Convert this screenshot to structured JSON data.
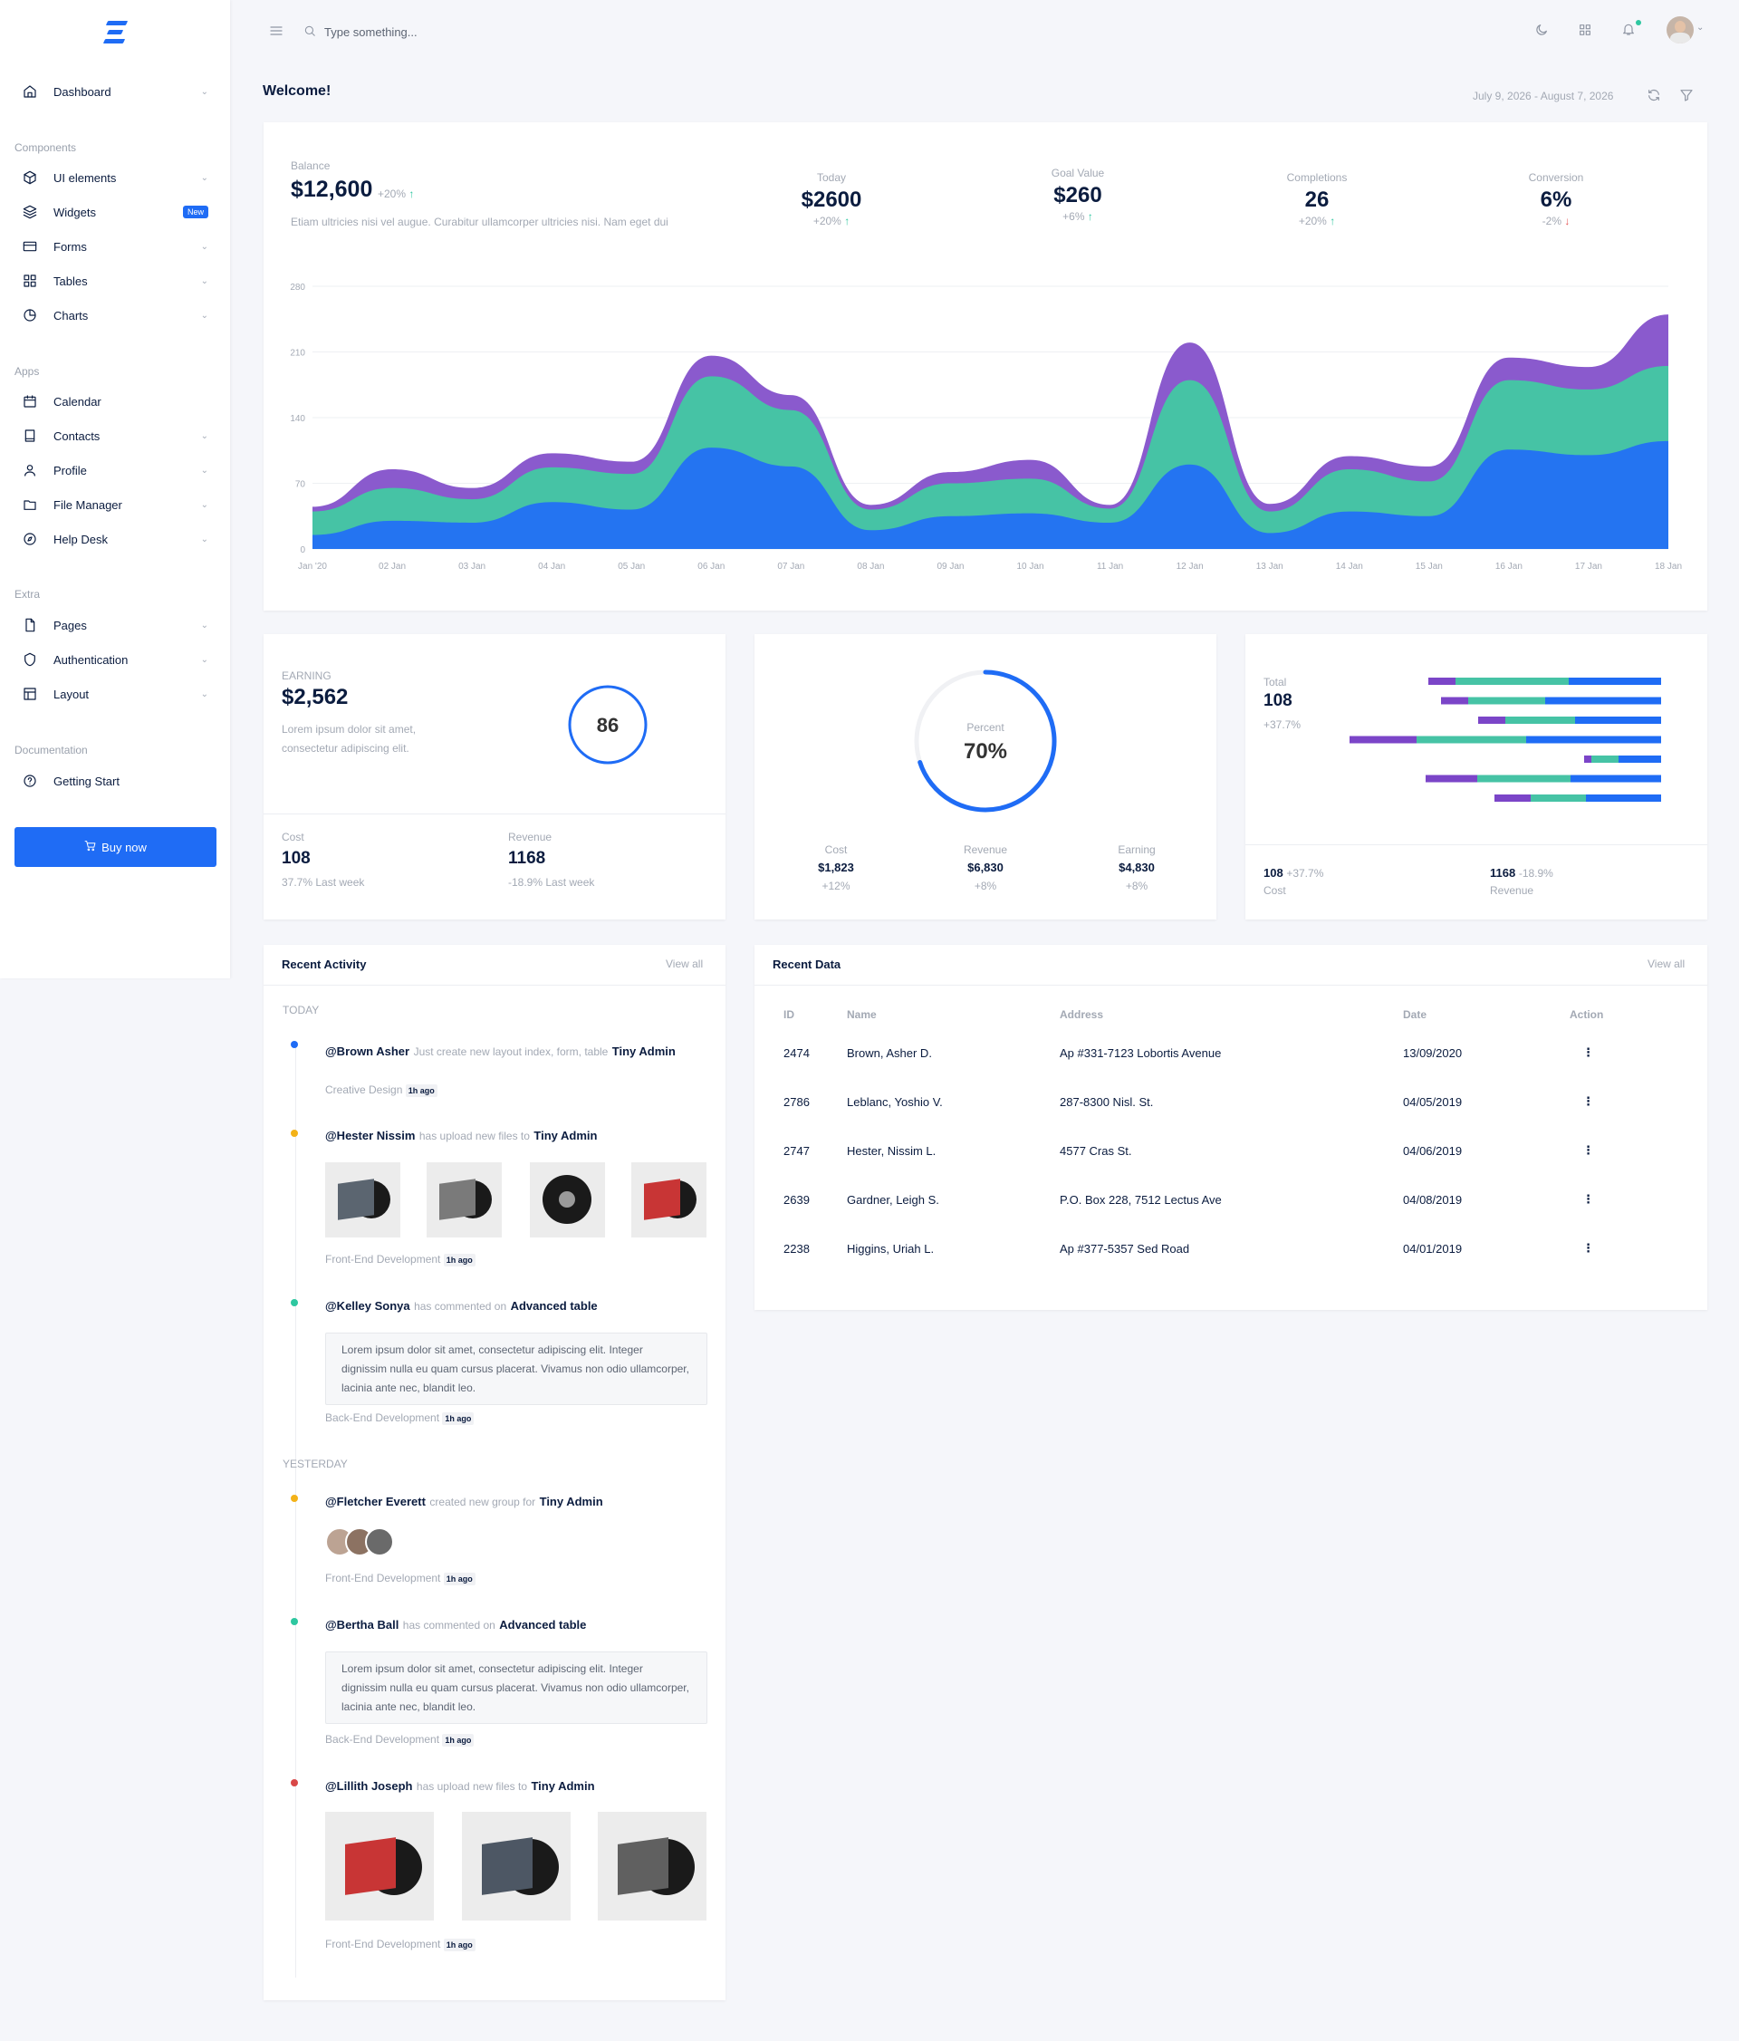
{
  "sidebar": {
    "dashboard": "Dashboard",
    "section_components": "Components",
    "ui_elements": "UI elements",
    "widgets": "Widgets",
    "widgets_badge": "New",
    "forms": "Forms",
    "tables": "Tables",
    "charts": "Charts",
    "section_apps": "Apps",
    "calendar": "Calendar",
    "contacts": "Contacts",
    "profile": "Profile",
    "file_manager": "File Manager",
    "help_desk": "Help Desk",
    "section_extra": "Extra",
    "pages": "Pages",
    "authentication": "Authentication",
    "layout": "Layout",
    "section_documentation": "Documentation",
    "getting_start": "Getting Start",
    "buy_now": "Buy now"
  },
  "topbar": {
    "search_placeholder": "Type something...",
    "accent": "#1f6cf5",
    "notification_dot": "#2ec7a0"
  },
  "header": {
    "welcome": "Welcome!",
    "date_range": "July 9, 2026 - August 7, 2026"
  },
  "overview": {
    "balance_label": "Balance",
    "balance_value": "$12,600",
    "balance_change": "+20%",
    "balance_desc": "Etiam ultricies nisi vel augue. Curabitur ullamcorper ultricies nisi. Nam eget dui",
    "stats": [
      {
        "label": "Today",
        "value": "$2600",
        "change": "+20%",
        "dir": "up"
      },
      {
        "label": "Goal Value",
        "value": "$260",
        "change": "+6%",
        "dir": "up"
      },
      {
        "label": "Completions",
        "value": "26",
        "change": "+20%",
        "dir": "up"
      },
      {
        "label": "Conversion",
        "value": "6%",
        "change": "-2%",
        "dir": "down"
      }
    ]
  },
  "chart_data": {
    "type": "area",
    "stacked": true,
    "x": [
      "Jan '20",
      "02 Jan",
      "03 Jan",
      "04 Jan",
      "05 Jan",
      "06 Jan",
      "07 Jan",
      "08 Jan",
      "09 Jan",
      "10 Jan",
      "11 Jan",
      "12 Jan",
      "13 Jan",
      "14 Jan",
      "15 Jan",
      "16 Jan",
      "17 Jan",
      "18 Jan"
    ],
    "ylim": [
      0,
      280
    ],
    "yticks": [
      "0",
      "70",
      "140",
      "210",
      "280"
    ],
    "grid": true,
    "colors": [
      "#2474f1",
      "#46c3a5",
      "#8a5acd"
    ],
    "series": [
      {
        "values": [
          15,
          30,
          28,
          50,
          42,
          108,
          88,
          20,
          35,
          38,
          28,
          90,
          17,
          40,
          35,
          106,
          100,
          115
        ]
      },
      {
        "values": [
          25,
          35,
          25,
          37,
          38,
          76,
          60,
          22,
          35,
          37,
          15,
          90,
          23,
          45,
          37,
          74,
          70,
          80
        ]
      },
      {
        "values": [
          5,
          20,
          12,
          15,
          13,
          22,
          16,
          5,
          12,
          20,
          4,
          40,
          8,
          14,
          16,
          24,
          24,
          55
        ]
      }
    ]
  },
  "earning_card": {
    "label": "EARNING",
    "value": "$2,562",
    "desc": "Lorem ipsum dolor sit amet, consectetur adipiscing elit.",
    "gauge": "86",
    "cost_label": "Cost",
    "cost_value": "108",
    "cost_sub": "37.7% Last week",
    "revenue_label": "Revenue",
    "revenue_value": "1168",
    "revenue_sub": "-18.9% Last week"
  },
  "percent_card": {
    "label": "Percent",
    "value": "70%",
    "progress": 0.7,
    "items": [
      {
        "label": "Cost",
        "value": "$1,823",
        "change": "+12%"
      },
      {
        "label": "Revenue",
        "value": "$6,830",
        "change": "+8%"
      },
      {
        "label": "Earning",
        "value": "$4,830",
        "change": "+8%"
      }
    ]
  },
  "total_card": {
    "label": "Total",
    "value": "108",
    "change": "+37.7%",
    "bars": [
      {
        "purple": 30,
        "green": 125,
        "blue": 102
      },
      {
        "purple": 30,
        "green": 85,
        "blue": 128
      },
      {
        "purple": 30,
        "green": 77,
        "blue": 95
      },
      {
        "purple": 74,
        "green": 121,
        "blue": 149
      },
      {
        "purple": 8,
        "green": 30,
        "blue": 47
      },
      {
        "purple": 57,
        "green": 103,
        "blue": 100
      },
      {
        "purple": 40,
        "green": 61,
        "blue": 83
      }
    ],
    "cost_value": "108",
    "cost_change": "+37.7%",
    "cost_label": "Cost",
    "revenue_value": "1168",
    "revenue_change": "-18.9%",
    "revenue_label": "Revenue"
  },
  "activity": {
    "title": "Recent Activity",
    "view_all": "View all",
    "today": "TODAY",
    "yesterday": "YESTERDAY",
    "a1": {
      "name": "@Brown Asher",
      "verb": "Just create new layout index, form, table",
      "target": "Tiny Admin",
      "tag": "Creative Design",
      "ago": "1h ago"
    },
    "a2": {
      "name": "@Hester Nissim",
      "verb": "has upload new files to",
      "target": "Tiny Admin",
      "tag": "Front-End Development",
      "ago": "1h ago"
    },
    "a3": {
      "name": "@Kelley Sonya",
      "verb": "has commented on",
      "target": "Advanced table",
      "comment": "Lorem ipsum dolor sit amet, consectetur adipiscing elit. Integer dignissim nulla eu quam cursus placerat. Vivamus non odio ullamcorper, lacinia ante nec, blandit leo.",
      "tag": "Back-End Development",
      "ago": "1h ago"
    },
    "a4": {
      "name": "@Fletcher Everett",
      "verb": "created new group for",
      "target": "Tiny Admin",
      "tag": "Front-End Development",
      "ago": "1h ago"
    },
    "a5": {
      "name": "@Bertha Ball",
      "verb": "has commented on",
      "target": "Advanced table",
      "comment": "Lorem ipsum dolor sit amet, consectetur adipiscing elit. Integer dignissim nulla eu quam cursus placerat. Vivamus non odio ullamcorper, lacinia ante nec, blandit leo.",
      "tag": "Back-End Development",
      "ago": "1h ago"
    },
    "a6": {
      "name": "@Lillith Joseph",
      "verb": "has upload new files to",
      "target": "Tiny Admin",
      "tag": "Front-End Development",
      "ago": "1h ago"
    }
  },
  "recent_data": {
    "title": "Recent Data",
    "view_all": "View all",
    "columns": [
      "ID",
      "Name",
      "Address",
      "Date",
      "Action"
    ],
    "rows": [
      [
        "2474",
        "Brown, Asher D.",
        "Ap #331-7123 Lobortis Avenue",
        "13/09/2020"
      ],
      [
        "2786",
        "Leblanc, Yoshio V.",
        "287-8300 Nisl. St.",
        "04/05/2019"
      ],
      [
        "2747",
        "Hester, Nissim L.",
        "4577 Cras St.",
        "04/06/2019"
      ],
      [
        "2639",
        "Gardner, Leigh S.",
        "P.O. Box 228, 7512 Lectus Ave",
        "04/08/2019"
      ],
      [
        "2238",
        "Higgins, Uriah L.",
        "Ap #377-5357 Sed Road",
        "04/01/2019"
      ]
    ]
  }
}
